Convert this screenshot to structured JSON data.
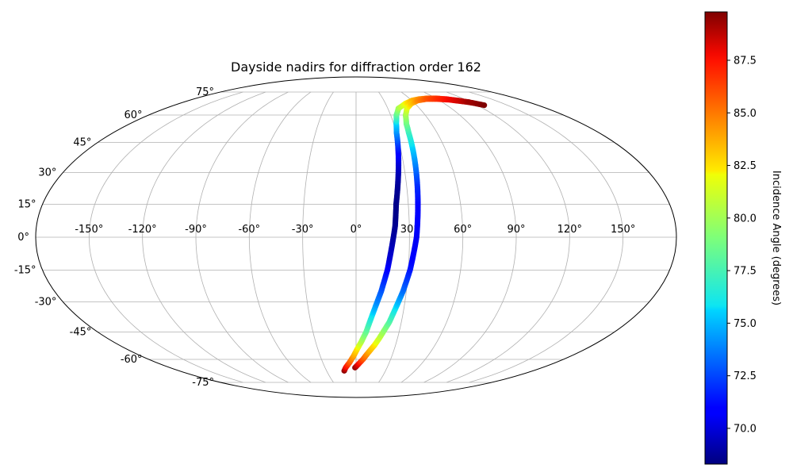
{
  "chart_data": {
    "type": "scatter",
    "projection": "mollweide",
    "title": "Dayside nadirs for diffraction order 162",
    "xlabel": "",
    "ylabel": "",
    "grid": true,
    "longitude_ticks": [
      "-150°",
      "-120°",
      "-90°",
      "-60°",
      "-30°",
      "0°",
      "30°",
      "60°",
      "90°",
      "120°",
      "150°"
    ],
    "latitude_ticks": [
      "75°",
      "60°",
      "45°",
      "30°",
      "15°",
      "0°",
      "-15°",
      "-30°",
      "-45°",
      "-60°",
      "-75°"
    ],
    "colorbar": {
      "label": "Incidence Angle (degrees)",
      "colormap": "jet",
      "range": [
        68.3,
        89.8
      ],
      "ticks": [
        "70.0",
        "72.5",
        "75.0",
        "77.5",
        "80.0",
        "82.5",
        "85.0",
        "87.5"
      ]
    },
    "series": [
      {
        "points": [
          {
            "lon": -12,
            "lat": -67,
            "inc": 89.5
          },
          {
            "lon": -10,
            "lat": -65,
            "inc": 88.0
          },
          {
            "lon": -6,
            "lat": -62,
            "inc": 86.0
          },
          {
            "lon": -2,
            "lat": -58,
            "inc": 84.0
          },
          {
            "lon": 1,
            "lat": -54,
            "inc": 82.5
          },
          {
            "lon": 4,
            "lat": -50,
            "inc": 80.5
          },
          {
            "lon": 7,
            "lat": -45,
            "inc": 78.5
          },
          {
            "lon": 9,
            "lat": -40,
            "inc": 77.0
          },
          {
            "lon": 11,
            "lat": -35,
            "inc": 75.5
          },
          {
            "lon": 13,
            "lat": -30,
            "inc": 74.0
          },
          {
            "lon": 15,
            "lat": -25,
            "inc": 73.0
          },
          {
            "lon": 16.5,
            "lat": -20,
            "inc": 72.0
          },
          {
            "lon": 18,
            "lat": -15,
            "inc": 71.0
          },
          {
            "lon": 19,
            "lat": -10,
            "inc": 70.0
          },
          {
            "lon": 20,
            "lat": -5,
            "inc": 69.5
          },
          {
            "lon": 21,
            "lat": 0,
            "inc": 69.0
          },
          {
            "lon": 22,
            "lat": 5,
            "inc": 68.7
          },
          {
            "lon": 22.5,
            "lat": 10,
            "inc": 68.5
          },
          {
            "lon": 23,
            "lat": 15,
            "inc": 68.5
          },
          {
            "lon": 24,
            "lat": 20,
            "inc": 68.6
          },
          {
            "lon": 25,
            "lat": 25,
            "inc": 68.8
          },
          {
            "lon": 26,
            "lat": 30,
            "inc": 69.3
          },
          {
            "lon": 27,
            "lat": 35,
            "inc": 70.0
          },
          {
            "lon": 28,
            "lat": 40,
            "inc": 71.0
          },
          {
            "lon": 29,
            "lat": 45,
            "inc": 72.5
          },
          {
            "lon": 30,
            "lat": 50,
            "inc": 74.0
          },
          {
            "lon": 32,
            "lat": 55,
            "inc": 75.5
          },
          {
            "lon": 35,
            "lat": 60,
            "inc": 78.0
          },
          {
            "lon": 40,
            "lat": 64,
            "inc": 80.0
          },
          {
            "lon": 50,
            "lat": 67,
            "inc": 82.0
          },
          {
            "lon": 60,
            "lat": 69,
            "inc": 83.5
          },
          {
            "lon": 70,
            "lat": 70,
            "inc": 84.5
          },
          {
            "lon": 80,
            "lat": 70.5,
            "inc": 85.5
          },
          {
            "lon": 90,
            "lat": 70.5,
            "inc": 86.5
          },
          {
            "lon": 100,
            "lat": 70,
            "inc": 87.5
          },
          {
            "lon": 110,
            "lat": 69,
            "inc": 88.5
          },
          {
            "lon": 120,
            "lat": 67.5,
            "inc": 89.3
          },
          {
            "lon": 127,
            "lat": 66,
            "inc": 89.8
          }
        ]
      },
      {
        "points": [
          {
            "lon": -1,
            "lat": -65,
            "inc": 89.5
          },
          {
            "lon": 2,
            "lat": -63,
            "inc": 88.0
          },
          {
            "lon": 6,
            "lat": -60,
            "inc": 86.0
          },
          {
            "lon": 10,
            "lat": -56,
            "inc": 84.0
          },
          {
            "lon": 14,
            "lat": -52,
            "inc": 82.5
          },
          {
            "lon": 17,
            "lat": -48,
            "inc": 81.0
          },
          {
            "lon": 19.5,
            "lat": -44,
            "inc": 79.5
          },
          {
            "lon": 22,
            "lat": -40,
            "inc": 78.0
          },
          {
            "lon": 24,
            "lat": -35,
            "inc": 76.5
          },
          {
            "lon": 26,
            "lat": -30,
            "inc": 75.0
          },
          {
            "lon": 28,
            "lat": -25,
            "inc": 73.5
          },
          {
            "lon": 29.5,
            "lat": -20,
            "inc": 72.5
          },
          {
            "lon": 31,
            "lat": -15,
            "inc": 71.5
          },
          {
            "lon": 32,
            "lat": -10,
            "inc": 71.0
          },
          {
            "lon": 33,
            "lat": -5,
            "inc": 70.5
          },
          {
            "lon": 34,
            "lat": 0,
            "inc": 70.5
          },
          {
            "lon": 34.5,
            "lat": 5,
            "inc": 70.6
          },
          {
            "lon": 35,
            "lat": 10,
            "inc": 70.8
          },
          {
            "lon": 35.5,
            "lat": 15,
            "inc": 71.0
          },
          {
            "lon": 36,
            "lat": 20,
            "inc": 71.5
          },
          {
            "lon": 36.5,
            "lat": 25,
            "inc": 72.0
          },
          {
            "lon": 37,
            "lat": 30,
            "inc": 73.0
          },
          {
            "lon": 37.5,
            "lat": 35,
            "inc": 74.0
          },
          {
            "lon": 38,
            "lat": 40,
            "inc": 75.0
          },
          {
            "lon": 38.5,
            "lat": 45,
            "inc": 76.0
          },
          {
            "lon": 39,
            "lat": 50,
            "inc": 77.0
          },
          {
            "lon": 40,
            "lat": 55,
            "inc": 78.5
          },
          {
            "lon": 43,
            "lat": 60,
            "inc": 80.0
          },
          {
            "lon": 48,
            "lat": 64,
            "inc": 81.5
          },
          {
            "lon": 56,
            "lat": 67,
            "inc": 83.0
          },
          {
            "lon": 66,
            "lat": 69,
            "inc": 84.5
          },
          {
            "lon": 78,
            "lat": 70,
            "inc": 85.8
          },
          {
            "lon": 90,
            "lat": 70,
            "inc": 86.8
          },
          {
            "lon": 102,
            "lat": 69.5,
            "inc": 87.8
          },
          {
            "lon": 112,
            "lat": 68.5,
            "inc": 88.6
          },
          {
            "lon": 118,
            "lat": 68,
            "inc": 89.3
          }
        ]
      }
    ]
  }
}
